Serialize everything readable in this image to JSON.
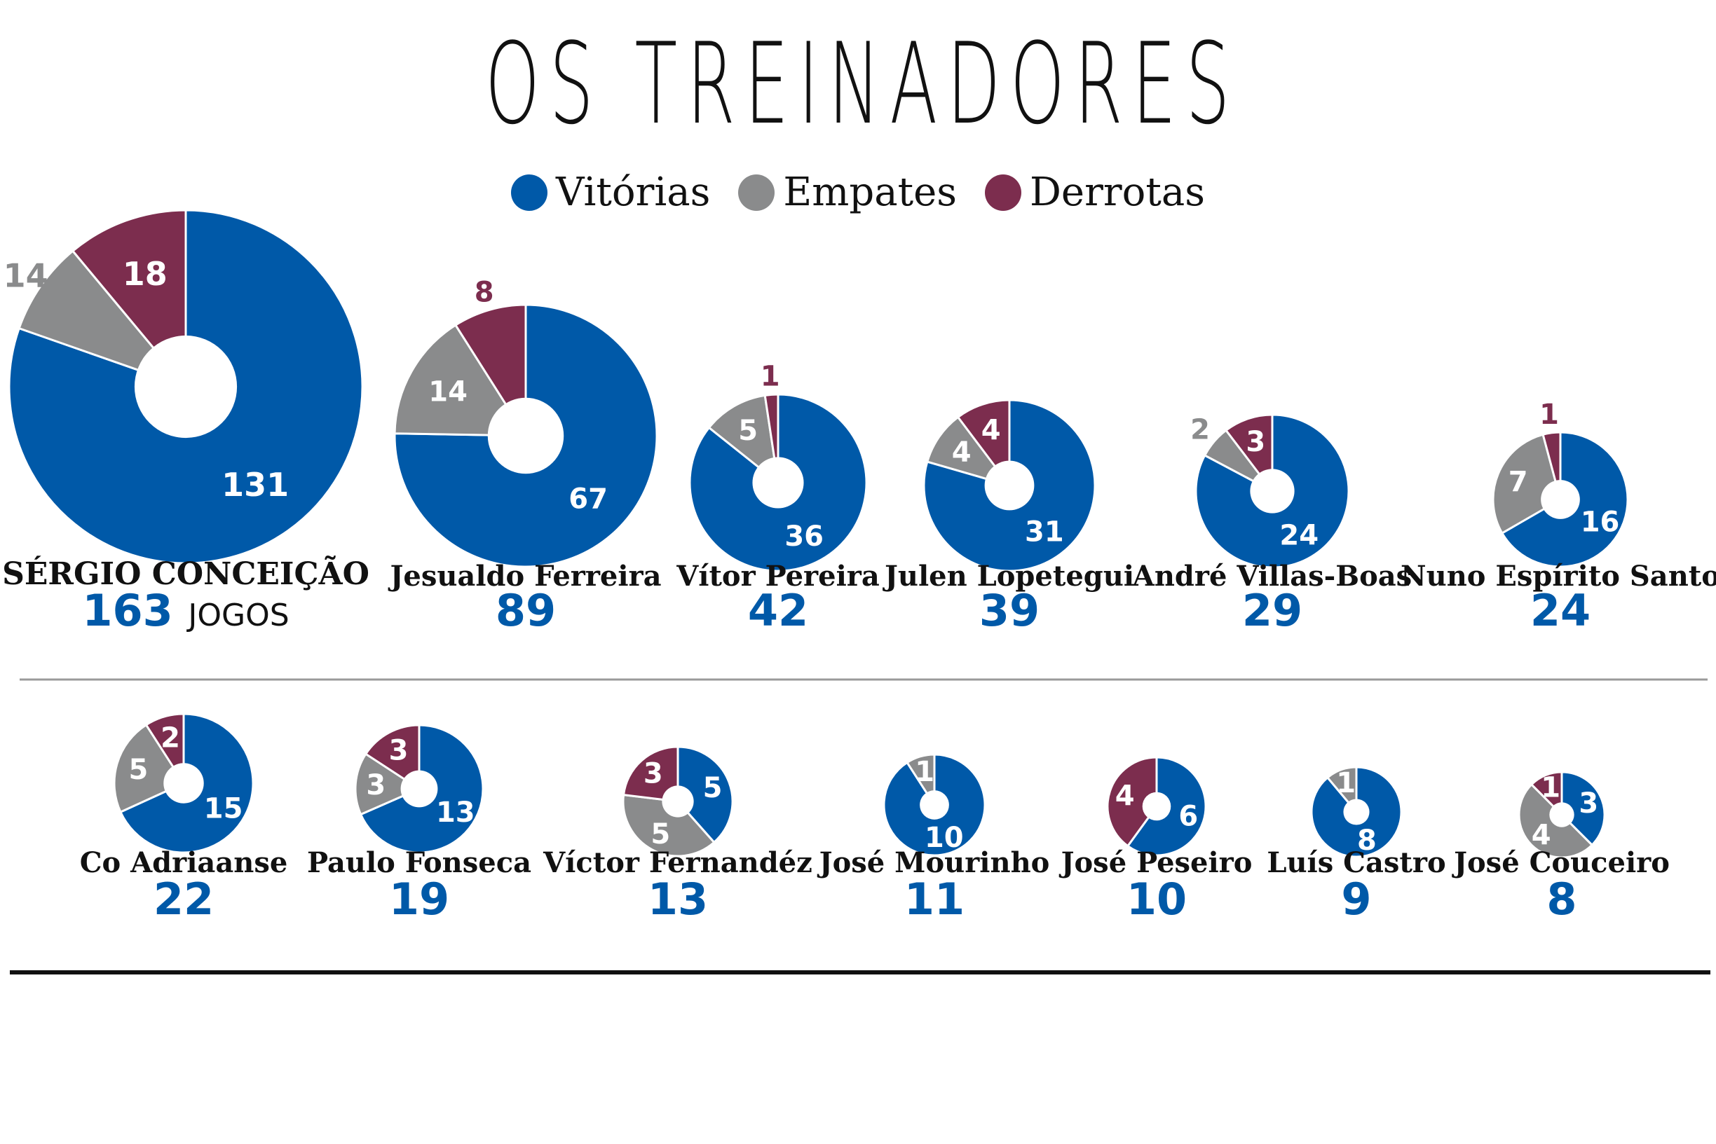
{
  "title": "OS TREINADORES",
  "legend": {
    "wins": "Vitórias",
    "draws": "Empates",
    "losses": "Derrotas"
  },
  "colors": {
    "wins": "#0059A8",
    "draws": "#8A8B8C",
    "losses": "#7C2D4E",
    "text_dark": "#111111"
  },
  "games_label": "JOGOS",
  "chart_data": {
    "type": "donut",
    "title": "OS TREINADORES",
    "series_order": [
      "Vitórias",
      "Empates",
      "Derrotas"
    ],
    "coaches": [
      {
        "name": "SÉRGIO CONCEIÇÃO",
        "total": 163,
        "wins": 131,
        "draws": 14,
        "losses": 18
      },
      {
        "name": "Jesualdo Ferreira",
        "total": 89,
        "wins": 67,
        "draws": 14,
        "losses": 8
      },
      {
        "name": "Vítor Pereira",
        "total": 42,
        "wins": 36,
        "draws": 5,
        "losses": 1
      },
      {
        "name": "Julen Lopetegui",
        "total": 39,
        "wins": 31,
        "draws": 4,
        "losses": 4
      },
      {
        "name": "André Villas-Boas",
        "total": 29,
        "wins": 24,
        "draws": 2,
        "losses": 3
      },
      {
        "name": "Nuno Espírito Santo",
        "total": 24,
        "wins": 16,
        "draws": 7,
        "losses": 1
      },
      {
        "name": "Co Adriaanse",
        "total": 22,
        "wins": 15,
        "draws": 5,
        "losses": 2
      },
      {
        "name": "Paulo Fonseca",
        "total": 19,
        "wins": 13,
        "draws": 3,
        "losses": 3
      },
      {
        "name": "Víctor Fernandéz",
        "total": 13,
        "wins": 5,
        "draws": 5,
        "losses": 3
      },
      {
        "name": "José Mourinho",
        "total": 11,
        "wins": 10,
        "draws": 1,
        "losses": 0
      },
      {
        "name": "José Peseiro",
        "total": 10,
        "wins": 6,
        "draws": 0,
        "losses": 4
      },
      {
        "name": "Luís Castro",
        "total": 9,
        "wins": 8,
        "draws": 1,
        "losses": 0
      },
      {
        "name": "José Couceiro",
        "total": 8,
        "wins": 3,
        "draws": 4,
        "losses": 1
      }
    ]
  }
}
